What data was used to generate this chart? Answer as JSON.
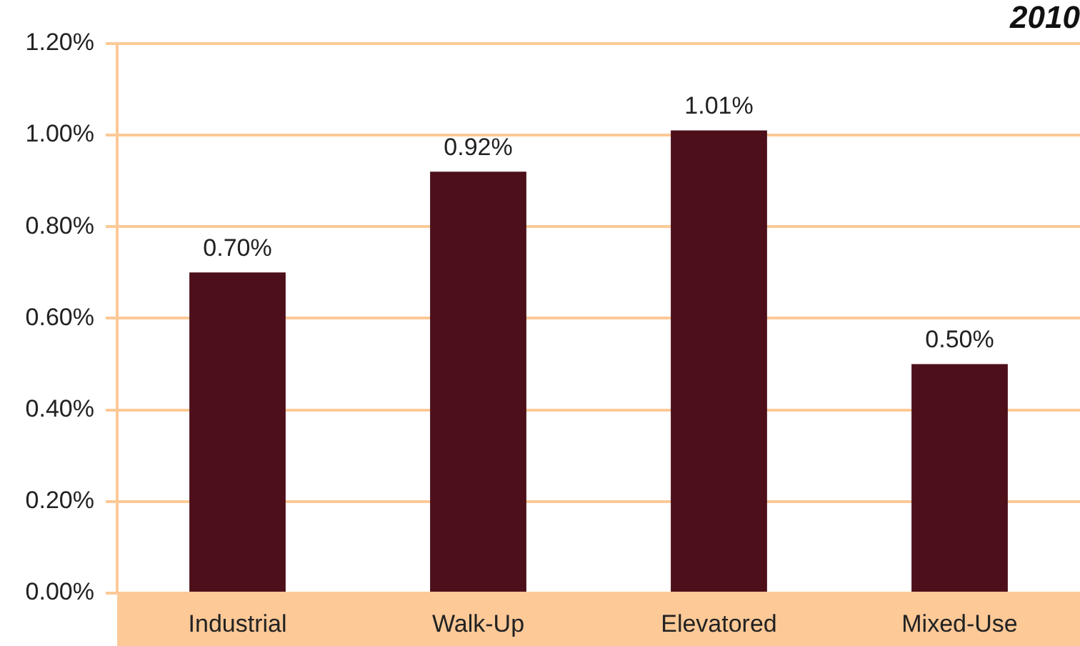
{
  "chart_data": {
    "type": "bar",
    "title": "2010",
    "categories": [
      "Industrial",
      "Walk-Up",
      "Elevatored",
      "Mixed-Use"
    ],
    "values": [
      0.7,
      0.92,
      1.01,
      0.5
    ],
    "value_labels": [
      "0.70%",
      "0.92%",
      "1.01%",
      "0.50%"
    ],
    "color": "#4d101b",
    "ylim": [
      0,
      1.2
    ],
    "yticks": [
      {
        "value": 0,
        "label": "0.00%"
      },
      {
        "value": 0.2,
        "label": "0.20%"
      },
      {
        "value": 0.4,
        "label": "0.40%"
      },
      {
        "value": 0.6,
        "label": "0.60%"
      },
      {
        "value": 0.8,
        "label": "0.80%"
      },
      {
        "value": 1.0,
        "label": "1.00%"
      },
      {
        "value": 1.2,
        "label": "1.20%"
      }
    ],
    "grid": "y"
  }
}
